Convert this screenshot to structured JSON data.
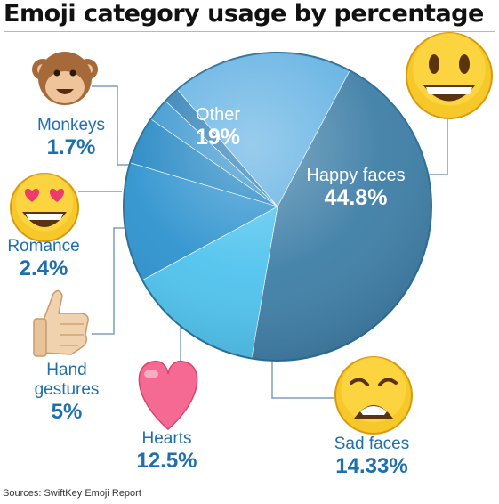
{
  "title": "Emoji category usage by percentage",
  "source": "Sources: SwiftKey Emoji Report",
  "chart_data": {
    "type": "pie",
    "title": "Emoji category usage by percentage",
    "slices": [
      {
        "label": "Happy faces",
        "display": "44.8%",
        "value": 44.8,
        "color": "#3f7fa7",
        "icon": "grinning-face-icon"
      },
      {
        "label": "Sad faces",
        "display": "14.33%",
        "value": 14.33,
        "color": "#50c3ee",
        "icon": "weary-face-icon"
      },
      {
        "label": "Hearts",
        "display": "12.5%",
        "value": 12.5,
        "color": "#2f93cf",
        "icon": "heart-icon"
      },
      {
        "label": "Hand gestures",
        "display": "5%",
        "value": 5,
        "color": "#2588c4",
        "icon": "thumbs-up-icon"
      },
      {
        "label": "Romance",
        "display": "2.4%",
        "value": 2.4,
        "color": "#3a96cf",
        "icon": "heart-eyes-face-icon"
      },
      {
        "label": "Monkeys",
        "display": "1.7%",
        "value": 1.7,
        "color": "#2d7fb6",
        "icon": "monkey-face-icon"
      },
      {
        "label": "Other",
        "display": "19%",
        "value": 19,
        "color": "#62b1e3",
        "icon": ""
      }
    ]
  }
}
